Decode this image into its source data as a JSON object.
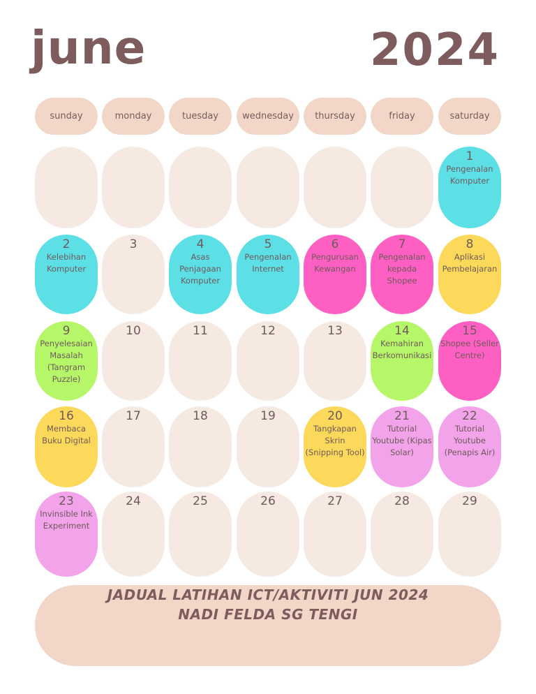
{
  "header": {
    "month": "june",
    "year": "2024"
  },
  "weekdays": [
    "sunday",
    "monday",
    "tuesday",
    "wednesday",
    "thursday",
    "friday",
    "saturday"
  ],
  "colors": {
    "cyan": "#5ddfe6",
    "pink": "#fe5fc2",
    "yellow": "#fcd95a",
    "green": "#b6f76a",
    "lilac": "#f2a3e9",
    "empty": "#f6e9e2",
    "header_pill": "#f2d7c8",
    "text": "#7e5b5d"
  },
  "weeks": [
    [
      {
        "day": "",
        "event": ""
      },
      {
        "day": "",
        "event": ""
      },
      {
        "day": "",
        "event": ""
      },
      {
        "day": "",
        "event": ""
      },
      {
        "day": "",
        "event": ""
      },
      {
        "day": "",
        "event": ""
      },
      {
        "day": "1",
        "event": "Pengenalan Komputer",
        "color": "cyan"
      }
    ],
    [
      {
        "day": "2",
        "event": "Kelebihan Komputer",
        "color": "cyan"
      },
      {
        "day": "3",
        "event": ""
      },
      {
        "day": "4",
        "event": "Asas Penjagaan Komputer",
        "color": "cyan"
      },
      {
        "day": "5",
        "event": "Pengenalan Internet",
        "color": "cyan"
      },
      {
        "day": "6",
        "event": "Pengurusan Kewangan",
        "color": "pink"
      },
      {
        "day": "7",
        "event": "Pengenalan kepada Shopee",
        "color": "pink"
      },
      {
        "day": "8",
        "event": "Aplikasi Pembelajaran",
        "color": "yellow"
      }
    ],
    [
      {
        "day": "9",
        "event": "Penyelesaian Masalah (Tangram Puzzle)",
        "color": "green"
      },
      {
        "day": "10",
        "event": ""
      },
      {
        "day": "11",
        "event": ""
      },
      {
        "day": "12",
        "event": ""
      },
      {
        "day": "13",
        "event": ""
      },
      {
        "day": "14",
        "event": "Kemahiran Berkomunikasi",
        "color": "green"
      },
      {
        "day": "15",
        "event": "Shopee (Seller Centre)",
        "color": "pink"
      }
    ],
    [
      {
        "day": "16",
        "event": "Membaca Buku Digital",
        "color": "yellow"
      },
      {
        "day": "17",
        "event": ""
      },
      {
        "day": "18",
        "event": ""
      },
      {
        "day": "19",
        "event": ""
      },
      {
        "day": "20",
        "event": "Tangkapan Skrin (Snipping Tool)",
        "color": "yellow"
      },
      {
        "day": "21",
        "event": "Tutorial Youtube (Kipas Solar)",
        "color": "lilac"
      },
      {
        "day": "22",
        "event": "Tutorial Youtube (Penapis Air)",
        "color": "lilac"
      }
    ],
    [
      {
        "day": "23",
        "event": "Invinsible Ink Experiment",
        "color": "lilac"
      },
      {
        "day": "24",
        "event": ""
      },
      {
        "day": "25",
        "event": ""
      },
      {
        "day": "26",
        "event": ""
      },
      {
        "day": "27",
        "event": ""
      },
      {
        "day": "28",
        "event": ""
      },
      {
        "day": "29",
        "event": ""
      }
    ]
  ],
  "footer": {
    "line1": "JADUAL LATIHAN ICT/AKTIVITI JUN 2024",
    "line2": "NADI FELDA SG TENGI"
  }
}
